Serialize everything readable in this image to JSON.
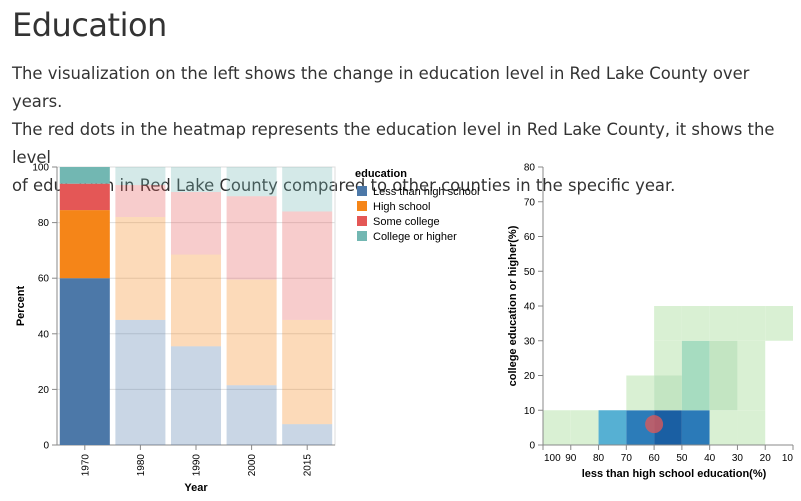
{
  "page": {
    "title": "Education",
    "description": [
      "The visualization on the left shows the change in education level in Red Lake County over years.",
      "The red dots in the heatmap represents the education level in Red Lake County, it shows the level",
      "of education in Red Lake County compared to other counties in the specific year."
    ]
  },
  "chart_data": [
    {
      "type": "bar",
      "subtype": "stacked",
      "categories": [
        "1970",
        "1980",
        "1990",
        "2000",
        "2015"
      ],
      "selected_category": "1970",
      "xlabel": "Year",
      "ylabel": "Percent",
      "ylim": [
        0,
        100
      ],
      "yticks": [
        0,
        20,
        40,
        60,
        80,
        100
      ],
      "grid": true,
      "legend": {
        "title": "education",
        "position": "right"
      },
      "series": [
        {
          "name": "Less than high school",
          "color": "#4c78a8",
          "values": [
            60,
            45,
            35.5,
            21.5,
            7.5
          ]
        },
        {
          "name": "High school",
          "color": "#f58518",
          "values": [
            24.5,
            37,
            33,
            38,
            37.5
          ]
        },
        {
          "name": "Some college",
          "color": "#e45756",
          "values": [
            9.5,
            11.5,
            22.5,
            30,
            39
          ]
        },
        {
          "name": "College or higher",
          "color": "#72b7b2",
          "values": [
            6,
            6.5,
            9,
            10.5,
            16
          ]
        }
      ]
    },
    {
      "type": "heatmap",
      "xlabel": "less than high school education(%)",
      "ylabel": "college education or higher(%)",
      "xlim": [
        100,
        10
      ],
      "ylim": [
        0,
        80
      ],
      "xticks": [
        100,
        90,
        80,
        70,
        60,
        50,
        40,
        30,
        20,
        10
      ],
      "yticks": [
        0,
        10,
        20,
        30,
        40,
        50,
        60,
        70,
        80
      ],
      "cells": [
        {
          "x": [
            100,
            90
          ],
          "y": [
            0,
            10
          ],
          "color": "#d9f0d3"
        },
        {
          "x": [
            90,
            80
          ],
          "y": [
            0,
            10
          ],
          "color": "#d9f0d3"
        },
        {
          "x": [
            80,
            70
          ],
          "y": [
            0,
            10
          ],
          "color": "#56b0d3"
        },
        {
          "x": [
            70,
            60
          ],
          "y": [
            0,
            10
          ],
          "color": "#2c7cb9"
        },
        {
          "x": [
            60,
            50
          ],
          "y": [
            0,
            10
          ],
          "color": "#1a5fa3"
        },
        {
          "x": [
            50,
            40
          ],
          "y": [
            0,
            10
          ],
          "color": "#2b7ab8"
        },
        {
          "x": [
            40,
            30
          ],
          "y": [
            0,
            10
          ],
          "color": "#d9f0d3"
        },
        {
          "x": [
            30,
            20
          ],
          "y": [
            0,
            10
          ],
          "color": "#d9f0d3"
        },
        {
          "x": [
            70,
            60
          ],
          "y": [
            10,
            20
          ],
          "color": "#d9f0d3"
        },
        {
          "x": [
            60,
            50
          ],
          "y": [
            10,
            20
          ],
          "color": "#c3e5c2"
        },
        {
          "x": [
            50,
            40
          ],
          "y": [
            10,
            20
          ],
          "color": "#a6dcc0"
        },
        {
          "x": [
            40,
            30
          ],
          "y": [
            10,
            20
          ],
          "color": "#c3e5c2"
        },
        {
          "x": [
            30,
            20
          ],
          "y": [
            10,
            20
          ],
          "color": "#d9f0d3"
        },
        {
          "x": [
            60,
            50
          ],
          "y": [
            20,
            30
          ],
          "color": "#d9f0d3"
        },
        {
          "x": [
            50,
            40
          ],
          "y": [
            20,
            30
          ],
          "color": "#a6dcc0"
        },
        {
          "x": [
            40,
            30
          ],
          "y": [
            20,
            30
          ],
          "color": "#c3e5c2"
        },
        {
          "x": [
            30,
            20
          ],
          "y": [
            20,
            30
          ],
          "color": "#d9f0d3"
        },
        {
          "x": [
            60,
            50
          ],
          "y": [
            30,
            40
          ],
          "color": "#d9f0d3"
        },
        {
          "x": [
            50,
            40
          ],
          "y": [
            30,
            40
          ],
          "color": "#d9f0d3"
        },
        {
          "x": [
            40,
            30
          ],
          "y": [
            30,
            40
          ],
          "color": "#d9f0d3"
        },
        {
          "x": [
            30,
            20
          ],
          "y": [
            30,
            40
          ],
          "color": "#d9f0d3"
        },
        {
          "x": [
            20,
            10
          ],
          "y": [
            30,
            40
          ],
          "color": "#d9f0d3"
        }
      ],
      "highlight_point": {
        "x": 60,
        "y": 6,
        "color": "#e45756"
      }
    }
  ]
}
